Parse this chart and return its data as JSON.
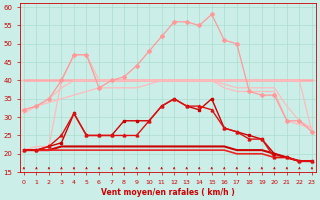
{
  "x": [
    0,
    1,
    2,
    3,
    4,
    5,
    6,
    7,
    8,
    9,
    10,
    11,
    12,
    13,
    14,
    15,
    16,
    17,
    18,
    19,
    20,
    21,
    22,
    23
  ],
  "series": [
    {
      "y": [
        32,
        33,
        35,
        40,
        47,
        47,
        38,
        40,
        41,
        44,
        48,
        52,
        56,
        56,
        55,
        58,
        51,
        50,
        37,
        36,
        36,
        29,
        29,
        26
      ],
      "color": "#ff9999",
      "lw": 0.9,
      "marker": "D",
      "ms": 2.0,
      "zorder": 3
    },
    {
      "y": [
        40,
        40,
        40,
        40,
        40,
        40,
        40,
        40,
        40,
        40,
        40,
        40,
        40,
        40,
        40,
        40,
        40,
        40,
        40,
        40,
        40,
        40,
        40,
        40
      ],
      "color": "#ffaaaa",
      "lw": 1.8,
      "marker": null,
      "ms": 0,
      "zorder": 2
    },
    {
      "y": [
        31,
        33,
        35,
        38,
        40,
        40,
        40,
        40,
        40,
        40,
        40,
        40,
        40,
        40,
        40,
        40,
        38,
        37,
        37,
        37,
        37,
        29,
        28,
        27
      ],
      "color": "#ffbbbb",
      "lw": 0.9,
      "marker": null,
      "ms": 0,
      "zorder": 2
    },
    {
      "y": [
        21,
        22,
        22,
        40,
        47,
        47,
        40,
        40,
        40,
        40,
        40,
        40,
        40,
        40,
        40,
        40,
        40,
        40,
        40,
        40,
        40,
        40,
        40,
        26
      ],
      "color": "#ffbbbb",
      "lw": 0.9,
      "marker": null,
      "ms": 0,
      "zorder": 2
    },
    {
      "y": [
        32,
        33,
        34,
        35,
        36,
        37,
        38,
        38,
        38,
        38,
        39,
        40,
        40,
        40,
        40,
        40,
        39,
        38,
        38,
        38,
        38,
        33,
        29,
        27
      ],
      "color": "#ffbbbb",
      "lw": 0.9,
      "marker": null,
      "ms": 0,
      "zorder": 2
    },
    {
      "y": [
        21,
        21,
        22,
        23,
        31,
        25,
        25,
        25,
        29,
        29,
        29,
        33,
        35,
        33,
        32,
        35,
        27,
        26,
        25,
        24,
        20,
        19,
        18,
        18
      ],
      "color": "#cc0000",
      "lw": 1.0,
      "marker": "s",
      "ms": 2.0,
      "zorder": 5
    },
    {
      "y": [
        21,
        21,
        22,
        25,
        31,
        25,
        25,
        25,
        25,
        25,
        29,
        33,
        35,
        33,
        33,
        32,
        27,
        26,
        24,
        24,
        19,
        19,
        18,
        18
      ],
      "color": "#dd1111",
      "lw": 1.0,
      "marker": "^",
      "ms": 2.0,
      "zorder": 5
    },
    {
      "y": [
        21,
        21,
        21,
        22,
        22,
        22,
        22,
        22,
        22,
        22,
        22,
        22,
        22,
        22,
        22,
        22,
        22,
        21,
        21,
        21,
        20,
        19,
        18,
        18
      ],
      "color": "#cc0000",
      "lw": 1.5,
      "marker": null,
      "ms": 0,
      "zorder": 4
    },
    {
      "y": [
        21,
        21,
        21,
        21,
        21,
        21,
        21,
        21,
        21,
        21,
        21,
        21,
        21,
        21,
        21,
        21,
        21,
        20,
        20,
        20,
        19,
        19,
        18,
        18
      ],
      "color": "#ee2222",
      "lw": 1.2,
      "marker": null,
      "ms": 0,
      "zorder": 4
    }
  ],
  "ylim": [
    15,
    61
  ],
  "xlim": [
    -0.3,
    23.3
  ],
  "yticks": [
    15,
    20,
    25,
    30,
    35,
    40,
    45,
    50,
    55,
    60
  ],
  "xticks": [
    0,
    1,
    2,
    3,
    4,
    5,
    6,
    7,
    8,
    9,
    10,
    11,
    12,
    13,
    14,
    15,
    16,
    17,
    18,
    19,
    20,
    21,
    22,
    23
  ],
  "xlabel": "Vent moyen/en rafales ( km/h )",
  "bg_color": "#cceee8",
  "grid_color": "#aaddcc",
  "tick_color": "#cc0000",
  "label_color": "#cc0000"
}
